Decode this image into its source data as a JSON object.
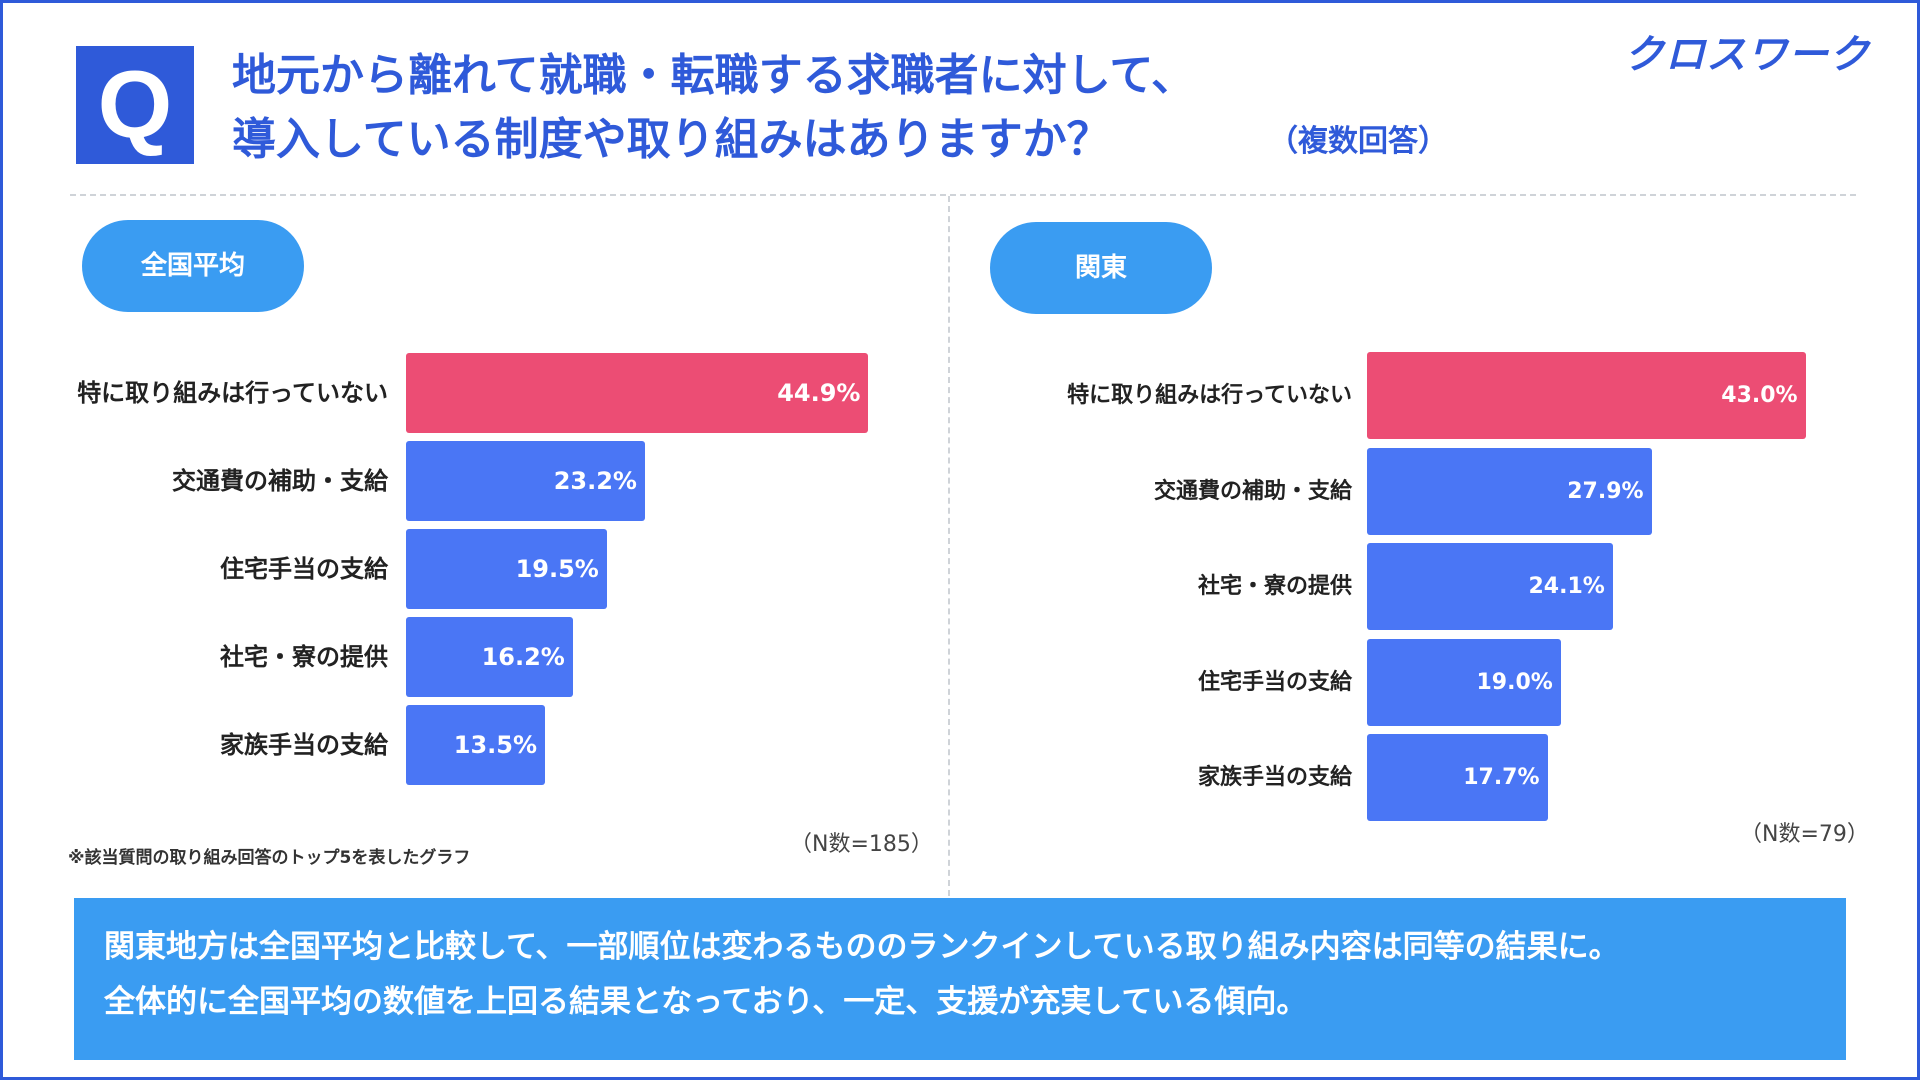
{
  "header": {
    "q_mark": "Q",
    "title_line1": "地元から離れて就職・転職する求職者に対して、",
    "title_line2": "導入している制度や取り組みはありますか？",
    "title_note": "（複数回答）",
    "logo": "クロスワーク"
  },
  "colors": {
    "brand": "#2f5ad9",
    "pill": "#3a9cf2",
    "highlight_bar": "#ec4d74",
    "bar": "#4a76f5"
  },
  "panels": {
    "left": {
      "pill": "全国平均",
      "n_label": "（N数=185）"
    },
    "right": {
      "pill": "関東",
      "n_label": "（N数=79）"
    }
  },
  "chart_data": [
    {
      "type": "bar",
      "orientation": "horizontal",
      "title": "全国平均",
      "categories": [
        "特に取り組みは行っていない",
        "交通費の補助・支給",
        "住宅手当の支給",
        "社宅・寮の提供",
        "家族手当の支給"
      ],
      "values": [
        44.9,
        23.2,
        19.5,
        16.2,
        13.5
      ],
      "value_labels": [
        "44.9%",
        "23.2%",
        "19.5%",
        "16.2%",
        "13.5%"
      ],
      "unit": "%",
      "xlim": [
        0,
        100
      ],
      "note": "（N数=185）"
    },
    {
      "type": "bar",
      "orientation": "horizontal",
      "title": "関東",
      "categories": [
        "特に取り組みは行っていない",
        "交通費の補助・支給",
        "社宅・寮の提供",
        "住宅手当の支給",
        "家族手当の支給"
      ],
      "values": [
        43.0,
        27.9,
        24.1,
        19.0,
        17.7
      ],
      "value_labels": [
        "43.0%",
        "27.9%",
        "24.1%",
        "19.0%",
        "17.7%"
      ],
      "unit": "%",
      "xlim": [
        0,
        100
      ],
      "note": "（N数=79）"
    }
  ],
  "footnote": "※該当質問の取り組み回答のトップ5を表したグラフ",
  "summary": {
    "line1": "関東地方は全国平均と比較して、一部順位は変わるもののランクインしている取り組み内容は同等の結果に。",
    "line2": "全体的に全国平均の数値を上回る結果となっており、一定、支援が充実している傾向。"
  }
}
